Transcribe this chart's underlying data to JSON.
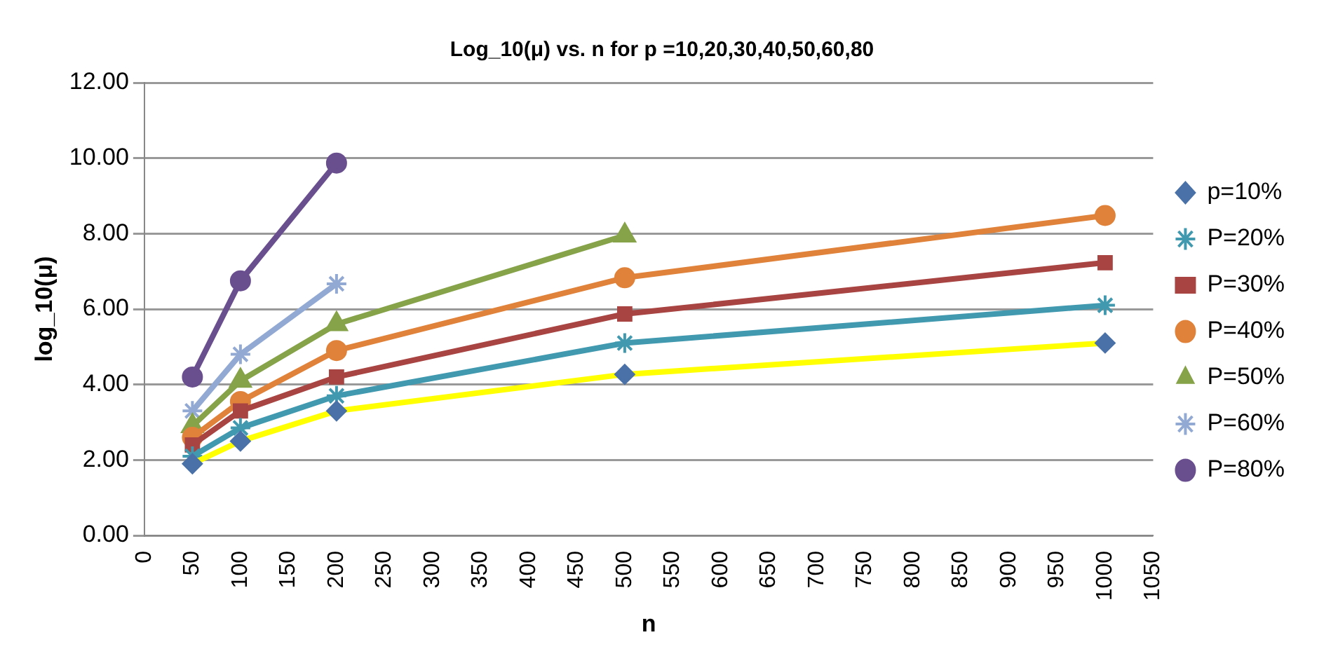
{
  "chart_data": {
    "type": "line",
    "title": "Log_10(μ) vs. n for p =10,20,30,40,50,60,80",
    "xlabel": "n",
    "ylabel": "log_10(μ)",
    "x": [
      50,
      100,
      200,
      500,
      1000
    ],
    "series": [
      {
        "name": "p=10%",
        "color": "#ffff00",
        "colors": [
          "#4a72a8",
          "#4a72a8",
          "#4a72a8",
          "#4a72a8",
          "#4a72a8"
        ],
        "marker": "diamond",
        "values": [
          1.9,
          2.5,
          3.3,
          4.27,
          5.1
        ]
      },
      {
        "name": "P=20%",
        "color": "#4199b0",
        "marker": "cross",
        "values": [
          2.1,
          2.85,
          3.7,
          5.1,
          6.1
        ]
      },
      {
        "name": "P=30%",
        "color": "#a84442",
        "marker": "square",
        "values": [
          2.4,
          3.3,
          4.2,
          5.87,
          7.23
        ]
      },
      {
        "name": "P=40%",
        "color": "#e0823a",
        "marker": "circle",
        "values": [
          2.6,
          3.55,
          4.9,
          6.83,
          8.48
        ]
      },
      {
        "name": "P=50%",
        "color": "#86a34a",
        "marker": "triangle",
        "values": [
          2.9,
          4.1,
          5.6,
          7.95,
          null
        ]
      },
      {
        "name": "P=60%",
        "color": "#92a9d3",
        "marker": "cross",
        "values": [
          3.3,
          4.8,
          6.67,
          null,
          null
        ]
      },
      {
        "name": "P=80%",
        "color": "#6a4f8f",
        "marker": "circle",
        "values": [
          4.2,
          6.75,
          9.87,
          null,
          null
        ]
      }
    ],
    "xlim": [
      0,
      1050
    ],
    "xticks": [
      0,
      50,
      100,
      150,
      200,
      250,
      300,
      350,
      400,
      450,
      500,
      550,
      600,
      650,
      700,
      750,
      800,
      850,
      900,
      950,
      1000,
      1050
    ],
    "ylim": [
      0,
      12
    ],
    "yticks": [
      {
        "value": 0,
        "label": "0.00"
      },
      {
        "value": 2,
        "label": "2.00"
      },
      {
        "value": 4,
        "label": "4.00"
      },
      {
        "value": 6,
        "label": "6.00"
      },
      {
        "value": 8,
        "label": "8.00"
      },
      {
        "value": 10,
        "label": "10.00"
      },
      {
        "value": 12,
        "label": "12.00"
      }
    ],
    "grid": "y",
    "legend": "right",
    "line_style": "solid"
  }
}
